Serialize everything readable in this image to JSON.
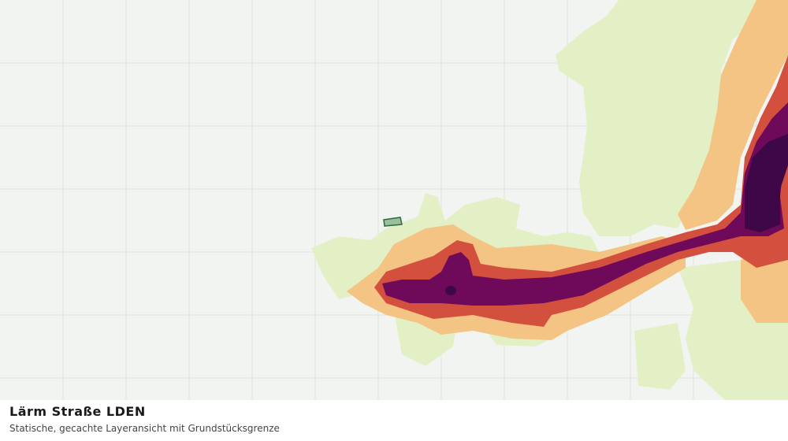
{
  "map": {
    "title": "Lärm Straße LDEN",
    "subtitle": "Statische, gecachte Layeransicht mit Grundstücksgrenze"
  }
}
